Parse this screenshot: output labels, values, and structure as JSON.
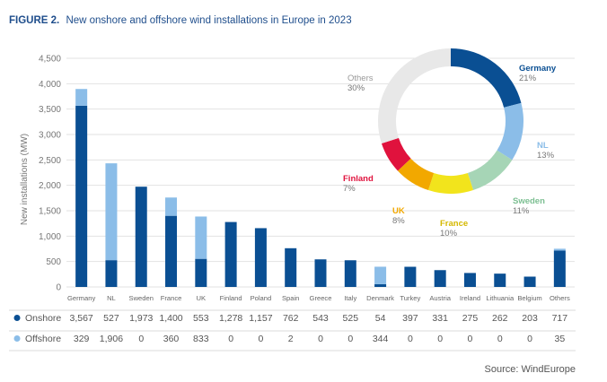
{
  "figure": {
    "label": "FIGURE 2.",
    "title": "New onshore and offshore wind installations in Europe in 2023",
    "source": "Source: WindEurope"
  },
  "colors": {
    "onshore": "#0a4f93",
    "offshore": "#8bbde8",
    "grid": "#e2e2e2",
    "title": "#1f4e8c"
  },
  "chart_data": [
    {
      "type": "bar",
      "stacked": true,
      "ylabel": "New installations (MW)",
      "ylim": [
        0,
        4500
      ],
      "yticks": [
        "0",
        "500",
        "1,000",
        "1,500",
        "2,000",
        "2,500",
        "3,000",
        "3,500",
        "4,000",
        "4,500"
      ],
      "yticks_values": [
        0,
        500,
        1000,
        1500,
        2000,
        2500,
        3000,
        3500,
        4000,
        4500
      ],
      "categories": [
        "Germany",
        "NL",
        "Sweden",
        "France",
        "UK",
        "Finland",
        "Poland",
        "Spain",
        "Greece",
        "Italy",
        "Denmark",
        "Turkey",
        "Austria",
        "Ireland",
        "Lithuania",
        "Belgium",
        "Others"
      ],
      "series": [
        {
          "name": "Onshore",
          "color": "#0a4f93",
          "values": [
            3567,
            527,
            1973,
            1400,
            553,
            1278,
            1157,
            762,
            543,
            525,
            54,
            397,
            331,
            275,
            262,
            203,
            717
          ],
          "labels": [
            "3,567",
            "527",
            "1,973",
            "1,400",
            "553",
            "1,278",
            "1,157",
            "762",
            "543",
            "525",
            "54",
            "397",
            "331",
            "275",
            "262",
            "203",
            "717"
          ]
        },
        {
          "name": "Offshore",
          "color": "#8bbde8",
          "values": [
            329,
            1906,
            0,
            360,
            833,
            0,
            0,
            2,
            0,
            0,
            344,
            0,
            0,
            0,
            0,
            0,
            35
          ],
          "labels": [
            "329",
            "1,906",
            "0",
            "360",
            "833",
            "0",
            "0",
            "2",
            "0",
            "0",
            "344",
            "0",
            "0",
            "0",
            "0",
            "0",
            "35"
          ]
        }
      ],
      "grid": true,
      "legend": "table-below"
    },
    {
      "type": "pie",
      "donut": true,
      "slices": [
        {
          "name": "Germany",
          "value": 21,
          "label": "21%",
          "color": "#0a4f93"
        },
        {
          "name": "NL",
          "value": 13,
          "label": "13%",
          "color": "#8bbde8"
        },
        {
          "name": "Sweden",
          "value": 11,
          "label": "11%",
          "color": "#a6d5b6"
        },
        {
          "name": "France",
          "value": 10,
          "label": "10%",
          "color": "#f2e41c"
        },
        {
          "name": "UK",
          "value": 8,
          "label": "8%",
          "color": "#f2a800"
        },
        {
          "name": "Finland",
          "value": 7,
          "label": "7%",
          "color": "#e0123d"
        },
        {
          "name": "Others",
          "value": 30,
          "label": "30%",
          "color": "#e8e8e8"
        }
      ]
    }
  ]
}
